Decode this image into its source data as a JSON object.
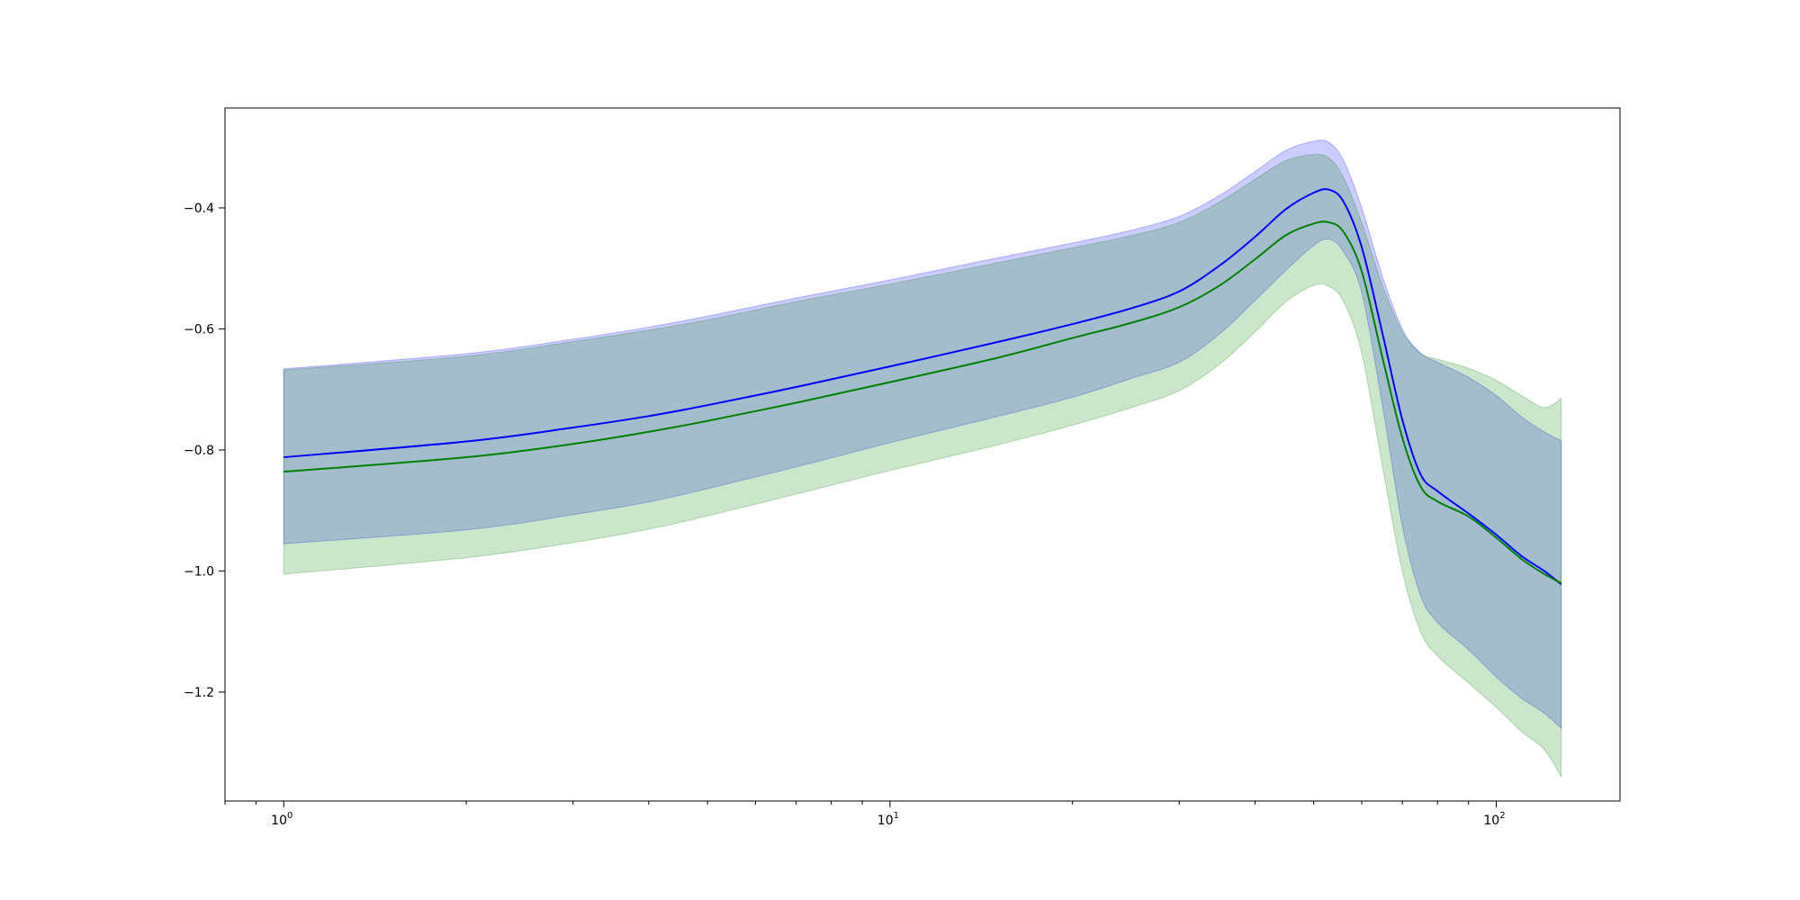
{
  "chart_data": {
    "type": "line",
    "title": "",
    "xlabel": "",
    "ylabel": "",
    "xscale": "log",
    "xlim": [
      0.8,
      160
    ],
    "ylim": [
      -1.38,
      -0.235
    ],
    "grid": false,
    "x_ticks": [
      {
        "value": 1,
        "label": "10",
        "exp": "0"
      },
      {
        "value": 10,
        "label": "10",
        "exp": "1"
      },
      {
        "value": 100,
        "label": "10",
        "exp": "2"
      }
    ],
    "y_ticks": [
      {
        "value": -0.4,
        "label": "−0.4"
      },
      {
        "value": -0.6,
        "label": "−0.6"
      },
      {
        "value": -0.8,
        "label": "−0.8"
      },
      {
        "value": -1.0,
        "label": "−1.0"
      },
      {
        "value": -1.2,
        "label": "−1.2"
      }
    ],
    "x": [
      1,
      2,
      3,
      4,
      5,
      7,
      10,
      15,
      20,
      25,
      30,
      35,
      40,
      45,
      50,
      53,
      56,
      60,
      65,
      70,
      75,
      80,
      90,
      100,
      110,
      120,
      128
    ],
    "series": [
      {
        "color": "#0000ff",
        "band_color": "#0000ff",
        "band_alpha": 0.2,
        "values": [
          -0.812,
          -0.786,
          -0.763,
          -0.744,
          -0.726,
          -0.696,
          -0.662,
          -0.622,
          -0.592,
          -0.566,
          -0.538,
          -0.495,
          -0.448,
          -0.402,
          -0.375,
          -0.37,
          -0.39,
          -0.465,
          -0.61,
          -0.75,
          -0.84,
          -0.868,
          -0.905,
          -0.94,
          -0.975,
          -1.0,
          -1.022
        ],
        "upper": [
          -0.666,
          -0.641,
          -0.617,
          -0.597,
          -0.579,
          -0.549,
          -0.519,
          -0.483,
          -0.458,
          -0.437,
          -0.414,
          -0.379,
          -0.34,
          -0.305,
          -0.29,
          -0.292,
          -0.322,
          -0.4,
          -0.515,
          -0.6,
          -0.64,
          -0.655,
          -0.68,
          -0.71,
          -0.745,
          -0.77,
          -0.785
        ],
        "lower": [
          -0.955,
          -0.932,
          -0.907,
          -0.886,
          -0.864,
          -0.828,
          -0.788,
          -0.745,
          -0.713,
          -0.682,
          -0.655,
          -0.608,
          -0.553,
          -0.503,
          -0.462,
          -0.452,
          -0.473,
          -0.54,
          -0.73,
          -0.925,
          -1.04,
          -1.085,
          -1.13,
          -1.175,
          -1.21,
          -1.235,
          -1.26
        ]
      },
      {
        "color": "#008000",
        "band_color": "#008000",
        "band_alpha": 0.2,
        "values": [
          -0.836,
          -0.812,
          -0.79,
          -0.77,
          -0.752,
          -0.722,
          -0.688,
          -0.648,
          -0.615,
          -0.59,
          -0.564,
          -0.528,
          -0.485,
          -0.445,
          -0.426,
          -0.424,
          -0.44,
          -0.505,
          -0.65,
          -0.78,
          -0.86,
          -0.885,
          -0.91,
          -0.945,
          -0.98,
          -1.005,
          -1.02
        ],
        "upper": [
          -0.668,
          -0.645,
          -0.621,
          -0.602,
          -0.585,
          -0.555,
          -0.526,
          -0.491,
          -0.466,
          -0.446,
          -0.424,
          -0.39,
          -0.353,
          -0.322,
          -0.312,
          -0.318,
          -0.35,
          -0.425,
          -0.53,
          -0.605,
          -0.64,
          -0.65,
          -0.665,
          -0.685,
          -0.71,
          -0.73,
          -0.715
        ],
        "lower": [
          -1.005,
          -0.978,
          -0.953,
          -0.931,
          -0.909,
          -0.873,
          -0.834,
          -0.792,
          -0.759,
          -0.73,
          -0.702,
          -0.658,
          -0.605,
          -0.555,
          -0.528,
          -0.53,
          -0.555,
          -0.64,
          -0.83,
          -1.0,
          -1.1,
          -1.14,
          -1.185,
          -1.225,
          -1.265,
          -1.295,
          -1.34
        ]
      }
    ]
  }
}
